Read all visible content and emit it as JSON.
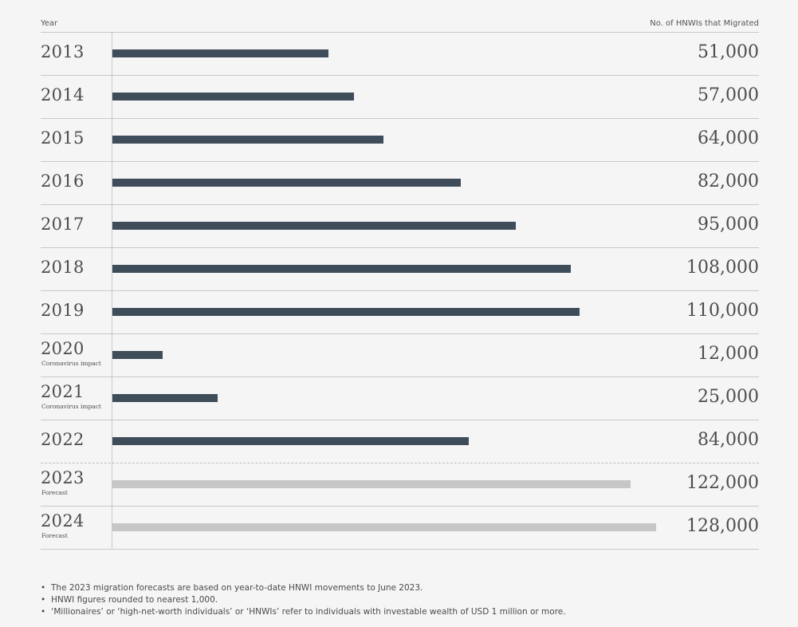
{
  "header": {
    "year_label": "Year",
    "value_label": "No. of HNWIs that Migrated"
  },
  "colors": {
    "actual": "#3f4c5a",
    "forecast": "#c6c6c6"
  },
  "chart_data": {
    "type": "bar",
    "orientation": "horizontal",
    "categories": [
      "2013",
      "2014",
      "2015",
      "2016",
      "2017",
      "2018",
      "2019",
      "2020",
      "2021",
      "2022",
      "2023",
      "2024"
    ],
    "values": [
      51000,
      57000,
      64000,
      82000,
      95000,
      108000,
      110000,
      12000,
      25000,
      84000,
      122000,
      128000
    ],
    "value_labels": [
      "51,000",
      "57,000",
      "64,000",
      "82,000",
      "95,000",
      "108,000",
      "110,000",
      "12,000",
      "25,000",
      "84,000",
      "122,000",
      "128,000"
    ],
    "notes": [
      "",
      "",
      "",
      "",
      "",
      "",
      "",
      "Coronavirus impact",
      "Coronavirus impact",
      "",
      "Forecast",
      "Forecast"
    ],
    "forecast": [
      false,
      false,
      false,
      false,
      false,
      false,
      false,
      false,
      false,
      false,
      true,
      true
    ],
    "xlabel": "No. of HNWIs that Migrated",
    "ylabel": "Year",
    "xlim": [
      0,
      152000
    ],
    "grid": false
  },
  "footnotes": [
    "The 2023 migration forecasts are based on year-to-date HNWI movements to June 2023.",
    "HNWI figures rounded to nearest 1,000.",
    "‘Millionaires’ or ‘high-net-worth individuals’ or ‘HNWIs’ refer to individuals with investable wealth of USD 1 million or more."
  ]
}
